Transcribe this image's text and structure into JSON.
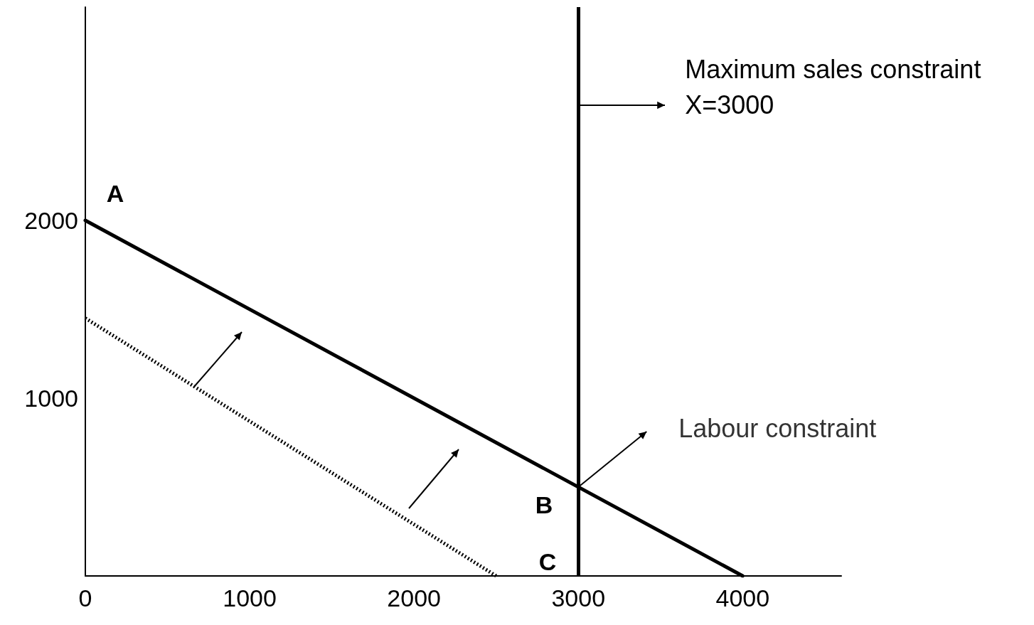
{
  "chart_data": {
    "type": "line",
    "xlim": [
      0,
      4600
    ],
    "ylim": [
      0,
      3200
    ],
    "xticks": [
      0,
      1000,
      2000,
      3000,
      4000
    ],
    "yticks": [
      1000,
      2000
    ],
    "grid": false,
    "marker": "none",
    "series": [
      {
        "color": "#000000",
        "x": [
          0,
          4000
        ],
        "values": [
          2000,
          0
        ],
        "line_style": "solid"
      },
      {
        "color": "#000000",
        "x": [
          0,
          2500
        ],
        "values": [
          1450,
          0
        ],
        "line_style": "dotted"
      }
    ],
    "ref_lines": [
      {
        "axis": "x",
        "value": 3000,
        "label": "Maximum sales constraint X=3000",
        "color": "#000000",
        "line_style": "solid"
      }
    ],
    "annotations": [
      "A",
      "B",
      "C",
      {
        "text": "Labour constraint",
        "x": 3000,
        "y": 500
      }
    ]
  }
}
